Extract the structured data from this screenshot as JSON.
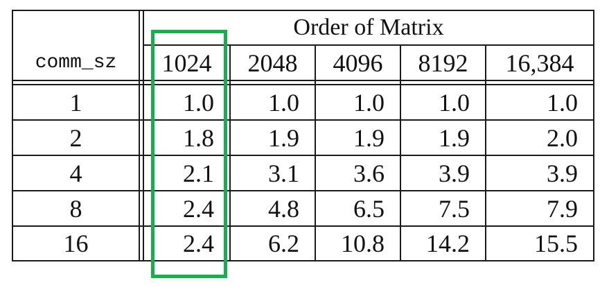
{
  "table": {
    "row_header": "comm_sz",
    "group_header": "Order of Matrix",
    "columns": [
      "1024",
      "2048",
      "4096",
      "8192",
      "16,384"
    ],
    "rows": [
      {
        "comm_sz": "1",
        "values": [
          "1.0",
          "1.0",
          "1.0",
          "1.0",
          "1.0"
        ]
      },
      {
        "comm_sz": "2",
        "values": [
          "1.8",
          "1.9",
          "1.9",
          "1.9",
          "2.0"
        ]
      },
      {
        "comm_sz": "4",
        "values": [
          "2.1",
          "3.1",
          "3.6",
          "3.9",
          "3.9"
        ]
      },
      {
        "comm_sz": "8",
        "values": [
          "2.4",
          "4.8",
          "6.5",
          "7.5",
          "7.9"
        ]
      },
      {
        "comm_sz": "16",
        "values": [
          "2.4",
          "6.2",
          "10.8",
          "14.2",
          "15.5"
        ]
      }
    ]
  },
  "highlight": {
    "column": "1024",
    "color": "#14b04c"
  }
}
